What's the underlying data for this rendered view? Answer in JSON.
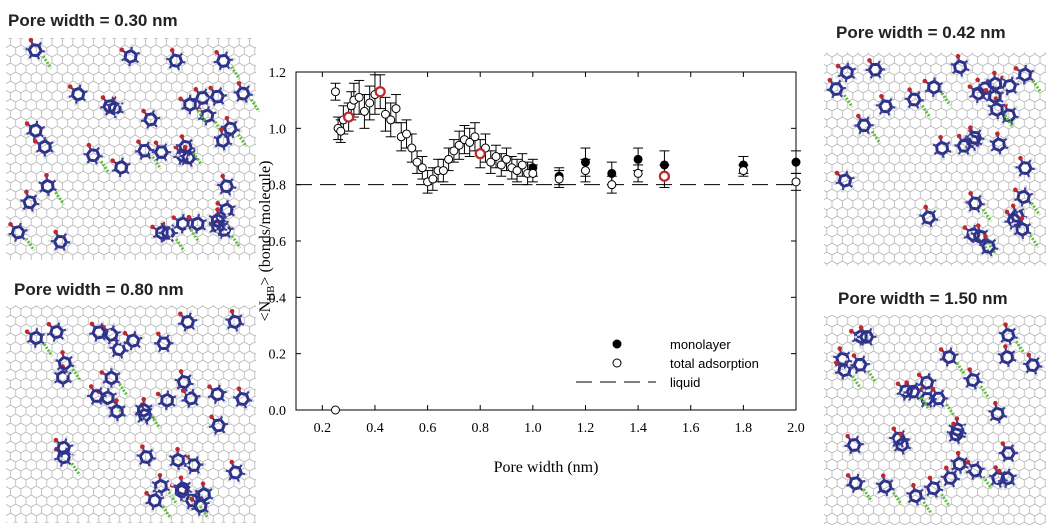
{
  "chart_data": {
    "type": "scatter",
    "xlabel": "Pore width (nm)",
    "ylabel_parts": [
      "<N",
      "HB",
      "> (bonds/molecule)"
    ],
    "xlim": [
      0.1,
      2.0
    ],
    "xticks": [
      0.2,
      0.4,
      0.6,
      0.8,
      {
        "value": 1,
        "label": "1.0"
      },
      1.2,
      1.4,
      1.6,
      1.8,
      {
        "value": 2,
        "label": "2.0"
      }
    ],
    "ylim": [
      0,
      1.2
    ],
    "yticks": [
      {
        "value": 0,
        "label": "0.0"
      },
      0.2,
      0.4,
      0.6,
      0.8,
      {
        "value": 1,
        "label": "1.0"
      },
      1.2
    ],
    "series": [
      {
        "name": "monolayer",
        "color": "#000000",
        "marker": "filled",
        "x": [
          1.0,
          1.1,
          1.2,
          1.3,
          1.4,
          1.5,
          1.8,
          2.0
        ],
        "values": [
          0.86,
          0.83,
          0.88,
          0.84,
          0.89,
          0.87,
          0.87,
          0.88
        ],
        "errors": [
          0.03,
          0.03,
          0.05,
          0.04,
          0.04,
          0.05,
          0.03,
          0.04
        ]
      },
      {
        "name": "total adsorption",
        "color": "#000000",
        "marker": "open",
        "x": [
          0.25,
          0.25,
          0.26,
          0.27,
          0.28,
          0.3,
          0.31,
          0.32,
          0.34,
          0.36,
          0.38,
          0.4,
          0.42,
          0.44,
          0.46,
          0.48,
          0.5,
          0.52,
          0.54,
          0.56,
          0.58,
          0.6,
          0.62,
          0.64,
          0.66,
          0.68,
          0.7,
          0.72,
          0.74,
          0.76,
          0.78,
          0.8,
          0.82,
          0.84,
          0.86,
          0.88,
          0.9,
          0.92,
          0.94,
          0.96,
          0.98,
          1.0,
          1.1,
          1.2,
          1.3,
          1.4,
          1.5,
          1.8,
          2.0
        ],
        "values": [
          0.0,
          1.13,
          1.0,
          0.99,
          1.03,
          1.04,
          1.08,
          1.1,
          1.11,
          1.06,
          1.09,
          1.12,
          1.13,
          1.05,
          1.03,
          1.07,
          0.97,
          0.98,
          0.93,
          0.88,
          0.86,
          0.81,
          0.82,
          0.85,
          0.85,
          0.89,
          0.92,
          0.94,
          0.96,
          0.95,
          0.97,
          0.91,
          0.93,
          0.88,
          0.9,
          0.87,
          0.89,
          0.86,
          0.85,
          0.87,
          0.84,
          0.84,
          0.82,
          0.85,
          0.8,
          0.84,
          0.83,
          0.85,
          0.81
        ],
        "errors": [
          0,
          0.03,
          0.04,
          0.04,
          0.05,
          0.05,
          0.05,
          0.06,
          0.06,
          0.06,
          0.06,
          0.07,
          0.06,
          0.06,
          0.06,
          0.05,
          0.05,
          0.05,
          0.05,
          0.04,
          0.04,
          0.04,
          0.04,
          0.04,
          0.04,
          0.04,
          0.04,
          0.05,
          0.05,
          0.05,
          0.05,
          0.05,
          0.05,
          0.04,
          0.04,
          0.04,
          0.04,
          0.04,
          0.04,
          0.04,
          0.04,
          0.03,
          0.03,
          0.04,
          0.03,
          0.03,
          0.04,
          0.02,
          0.03
        ]
      }
    ],
    "reference_lines": [
      {
        "name": "liquid",
        "value": 0.8,
        "color": "#000000",
        "dash": true
      }
    ],
    "highlight_x": [
      0.3,
      0.42,
      0.8,
      1.5
    ],
    "highlight_color": "#c0282d",
    "legend": "lower right"
  },
  "panels": [
    {
      "title": "Pore width = 0.30 nm"
    },
    {
      "title": "Pore width = 0.80 nm"
    },
    {
      "title": "Pore width = 0.42 nm"
    },
    {
      "title": "Pore width = 1.50 nm"
    }
  ]
}
